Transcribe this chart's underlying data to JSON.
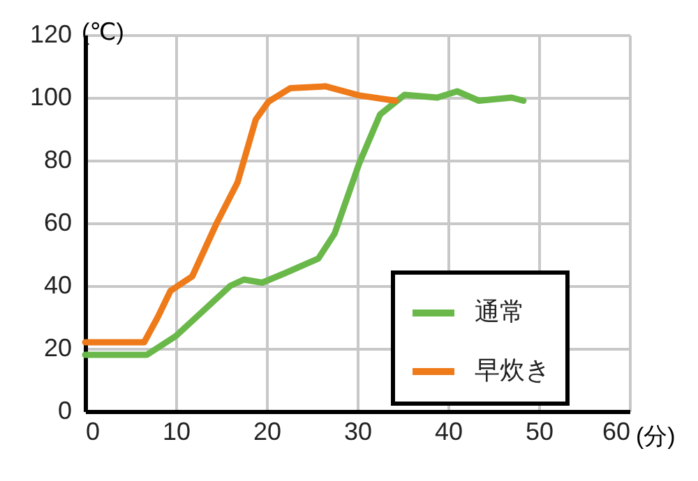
{
  "chart_data": {
    "type": "line",
    "xlabel": "(分)",
    "ylabel": "(℃)",
    "xlim": [
      0,
      60
    ],
    "xticks": [
      0,
      10,
      20,
      30,
      40,
      50,
      60
    ],
    "ylim": [
      0,
      120
    ],
    "yticks": [
      0,
      20,
      40,
      60,
      80,
      100,
      120
    ],
    "grid": true,
    "legend": "bottom right",
    "line_style": "solid",
    "marker": "none",
    "series": [
      {
        "name": "通常",
        "color": "#6ab84a",
        "x": [
          0,
          6.8,
          10,
          13,
          16,
          17.5,
          19.5,
          22,
          25.7,
          27.5,
          30.2,
          32.5,
          35.2,
          38.8,
          41,
          43.4,
          47,
          48.3
        ],
        "values": [
          18,
          18,
          24,
          32,
          40,
          42,
          41,
          44,
          48.7,
          56.7,
          79,
          94.6,
          100.9,
          100,
          102,
          99,
          100,
          99
        ]
      },
      {
        "name": "早炊き",
        "color": "#ee7a1a",
        "x": [
          0,
          6.5,
          8,
          9.4,
          11.8,
          14.5,
          16.8,
          18.8,
          20.2,
          22.6,
          26,
          26.5,
          30.2,
          34.2
        ],
        "values": [
          22,
          22,
          30,
          38.4,
          43,
          60,
          73,
          93,
          98.7,
          103,
          103.5,
          103.6,
          100.7,
          99
        ]
      }
    ]
  }
}
